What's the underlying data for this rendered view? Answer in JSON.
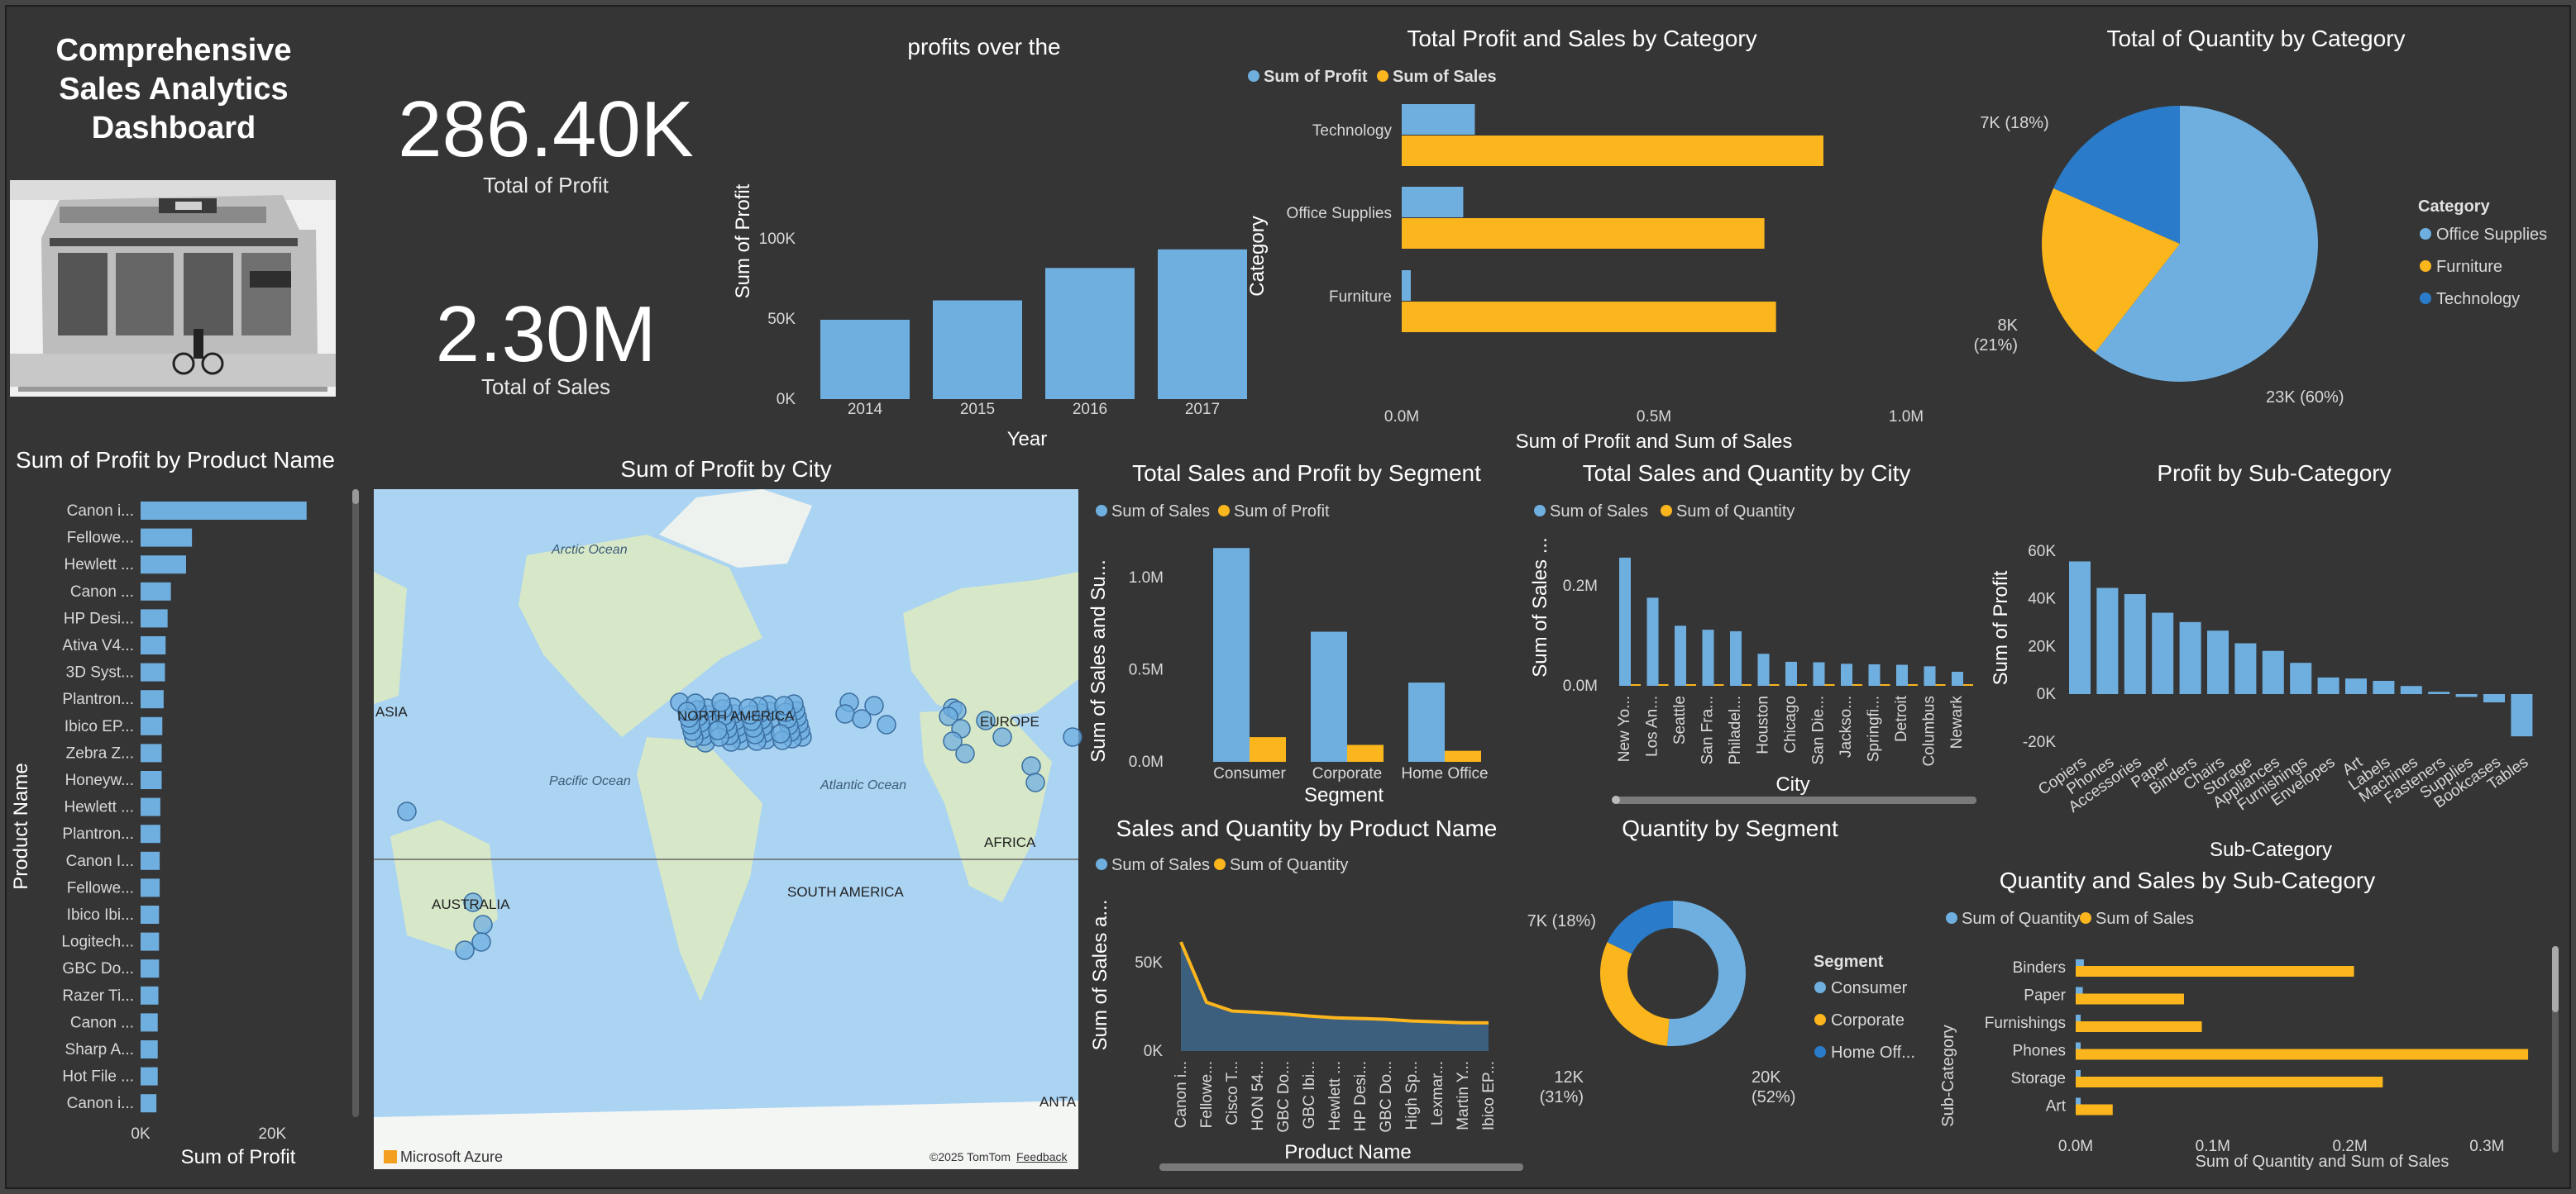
{
  "dashboard": {
    "title_lines": [
      "Comprehensive",
      "Sales Analytics",
      "Dashboard"
    ]
  },
  "kpi": {
    "profit_value": "286.40K",
    "profit_label": "Total of Profit",
    "sales_value": "2.30M",
    "sales_label": "Total  of Sales"
  },
  "colors": {
    "blue": "#6fafe0",
    "darkblue": "#2b7bcb",
    "gold": "#fbb51d",
    "bg": "#353535",
    "map_water": "#abd3f2",
    "map_land": "#d7e8c8"
  },
  "map": {
    "title": "Sum of Profit by City",
    "labels": {
      "arctic": "Arctic Ocean",
      "na": "NORTH AMERICA",
      "pacific": "Pacific Ocean",
      "atlantic": "Atlantic Ocean",
      "europe": "EUROPE",
      "africa": "AFRICA",
      "sa": "SOUTH AMERICA",
      "asia": "ASIA",
      "australia": "AUSTRALIA",
      "antarctica": "ANTA"
    },
    "attribution": "Microsoft Azure",
    "copyright": "©2025 TomTom",
    "feedback": "Feedback"
  },
  "chart_data": [
    {
      "id": "profit_year",
      "type": "bar",
      "title": "profits over the",
      "xlabel": "Year",
      "ylabel": "Sum of Profit",
      "categories": [
        "2014",
        "2015",
        "2016",
        "2017"
      ],
      "values": [
        49500,
        61600,
        81800,
        93400
      ],
      "ylim": [
        0,
        100000
      ],
      "yticks": [
        "0K",
        "50K",
        "100K"
      ]
    },
    {
      "id": "cat_profit_sales",
      "type": "bar",
      "orientation": "horizontal",
      "title": "Total Profit and Sales by Category",
      "xlabel": "Sum of Profit and Sum of Sales",
      "ylabel": "Category",
      "categories": [
        "Technology",
        "Office Supplies",
        "Furniture"
      ],
      "series": [
        {
          "name": "Sum of Profit",
          "values": [
            145000,
            122000,
            18000
          ]
        },
        {
          "name": "Sum of Sales",
          "values": [
            836000,
            719000,
            742000
          ]
        }
      ],
      "xlim": [
        0,
        1000000
      ],
      "xticks": [
        "0.0M",
        "0.5M",
        "1.0M"
      ]
    },
    {
      "id": "qty_category",
      "type": "pie",
      "title": "Total of Quantity by Category",
      "legend_title": "Category",
      "slices": [
        {
          "label": "Office Supplies",
          "value": 23000,
          "text": "23K (60%)"
        },
        {
          "label": "Furniture",
          "value": 8000,
          "text": "8K (21%)"
        },
        {
          "label": "Technology",
          "value": 7000,
          "text": "7K (18%)"
        }
      ]
    },
    {
      "id": "profit_product",
      "type": "bar",
      "orientation": "horizontal",
      "title": "Sum of Profit by Product Name",
      "xlabel": "Sum of Profit",
      "ylabel": "Product Name",
      "categories": [
        "Canon i...",
        "Fellowe...",
        "Hewlett ...",
        "Canon ...",
        "HP Desi...",
        "Ativa V4...",
        "3D Syst...",
        "Plantron...",
        "Ibico EP...",
        "Zebra Z...",
        "Honeyw...",
        "Hewlett ...",
        "Plantron...",
        "Canon I...",
        "Fellowe...",
        "Ibico Ibi...",
        "Logitech...",
        "GBC Do...",
        "Razer Ti...",
        "Canon ...",
        "Sharp A...",
        "Hot File ...",
        "Canon i..."
      ],
      "values": [
        25200,
        7800,
        6900,
        4600,
        4100,
        3800,
        3700,
        3500,
        3300,
        3200,
        3200,
        3000,
        3000,
        2900,
        2900,
        2800,
        2800,
        2800,
        2700,
        2600,
        2600,
        2600,
        2400
      ],
      "xlim": [
        0,
        30000
      ],
      "xticks": [
        "0K",
        "20K"
      ]
    },
    {
      "id": "segment_sales_profit",
      "type": "bar",
      "title": "Total Sales and Profit by Segment",
      "xlabel": "Segment",
      "ylabel": "Sum of Sales and Su...",
      "categories": [
        "Consumer",
        "Corporate",
        "Home Office"
      ],
      "series": [
        {
          "name": "Sum of Sales",
          "values": [
            1160000,
            706000,
            430000
          ]
        },
        {
          "name": "Sum of Profit",
          "values": [
            134000,
            92000,
            60000
          ]
        }
      ],
      "ylim": [
        0,
        1300000
      ],
      "yticks": [
        "0.0M",
        "0.5M",
        "1.0M"
      ]
    },
    {
      "id": "city_sales_qty",
      "type": "bar",
      "title": "Total Sales and Quantity by City",
      "xlabel": "City",
      "ylabel": "Sum of Sales ...",
      "categories": [
        "New Yo...",
        "Los An...",
        "Seattle",
        "San Fra...",
        "Philadel...",
        "Houston",
        "Chicago",
        "San Die...",
        "Jackso...",
        "Springfi...",
        "Detroit",
        "Columbus",
        "Newark"
      ],
      "series": [
        {
          "name": "Sum of Sales",
          "values": [
            256000,
            176000,
            120000,
            112000,
            109000,
            64000,
            48000,
            47000,
            44000,
            43000,
            42000,
            39000,
            28000
          ]
        },
        {
          "name": "Sum of Quantity",
          "values": [
            3400,
            2900,
            1600,
            1900,
            1900,
            1500,
            1100,
            700,
            600,
            500,
            500,
            600,
            200
          ]
        }
      ],
      "ylim": [
        0,
        330000
      ],
      "yticks": [
        "0.0M",
        "0.2M"
      ]
    },
    {
      "id": "profit_subcat",
      "type": "bar",
      "title": "Profit by Sub-Category",
      "xlabel": "Sub-Category",
      "ylabel": "Sum of Profit",
      "categories": [
        "Copiers",
        "Phones",
        "Accessories",
        "Paper",
        "Binders",
        "Chairs",
        "Storage",
        "Appliances",
        "Furnishings",
        "Envelopes",
        "Art",
        "Labels",
        "Machines",
        "Fasteners",
        "Supplies",
        "Bookcases",
        "Tables"
      ],
      "values": [
        55600,
        44500,
        41900,
        34100,
        30200,
        26600,
        21300,
        18100,
        13100,
        6960,
        6530,
        5550,
        3380,
        950,
        -1190,
        -3470,
        -17700
      ],
      "ylim": [
        -20000,
        60000
      ],
      "yticks": [
        "60K",
        "40K",
        "20K",
        "0K",
        "-20K"
      ]
    },
    {
      "id": "product_sales_qty",
      "type": "area",
      "title": "Sales and Quantity by Product Name",
      "xlabel": "Product Name",
      "ylabel": "Sum of Sales a...",
      "categories": [
        "Canon i...",
        "Fellowe...",
        "Cisco T...",
        "HON 54...",
        "GBC Do...",
        "GBC Ibi...",
        "Hewlett ...",
        "HP Desi...",
        "GBC Do...",
        "High Sp...",
        "Lexmar...",
        "Martin Y...",
        "Ibico EP..."
      ],
      "series": [
        {
          "name": "Sum of Sales",
          "values": [
            61600,
            27500,
            22600,
            21900,
            21000,
            19800,
            18800,
            18400,
            17900,
            17000,
            16500,
            16000,
            15900
          ]
        },
        {
          "name": "Sum of Quantity",
          "values": [
            20,
            31,
            27,
            29,
            39,
            22,
            23,
            20,
            21,
            17,
            13,
            9,
            20
          ]
        }
      ],
      "ylim": [
        0,
        70000
      ],
      "yticks": [
        "0K",
        "50K"
      ]
    },
    {
      "id": "qty_segment",
      "type": "donut",
      "title": "Quantity by Segment",
      "legend_title": "Segment",
      "slices": [
        {
          "label": "Consumer",
          "value": 20000,
          "text": "20K (52%)"
        },
        {
          "label": "Corporate",
          "value": 12000,
          "text": "12K (31%)"
        },
        {
          "label": "Home Off...",
          "value": 7000,
          "text": "7K (18%)"
        }
      ]
    },
    {
      "id": "subcat_qty_sales",
      "type": "bar",
      "orientation": "horizontal",
      "title": "Quantity and Sales by Sub-Category",
      "xlabel": "Sum of Quantity and Sum of Sales",
      "ylabel": "Sub-Category",
      "categories": [
        "Binders",
        "Paper",
        "Furnishings",
        "Phones",
        "Storage",
        "Art"
      ],
      "series": [
        {
          "name": "Sum of Quantity",
          "values": [
            5974,
            5178,
            3563,
            3289,
            3158,
            3000
          ]
        },
        {
          "name": "Sum of Sales",
          "values": [
            203000,
            79000,
            92000,
            330000,
            224000,
            27000
          ]
        }
      ],
      "xlim": [
        0,
        380000
      ],
      "xticks": [
        "0.0M",
        "0.1M",
        "0.2M",
        "0.3M"
      ]
    }
  ]
}
